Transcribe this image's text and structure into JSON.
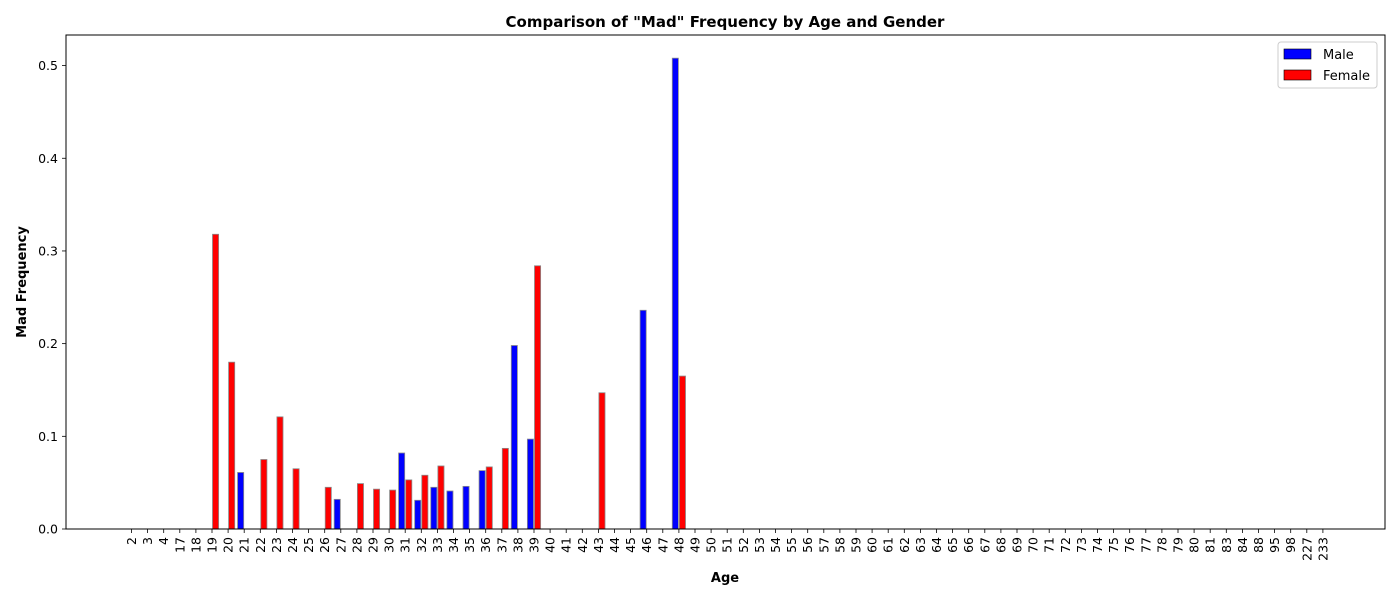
{
  "chart_data": {
    "type": "bar",
    "title": "Comparison of \"Mad\" Frequency by Age and Gender",
    "xlabel": "Age",
    "ylabel": "Mad Frequency",
    "ylim": [
      0,
      0.533
    ],
    "yticks": [
      0.0,
      0.1,
      0.2,
      0.3,
      0.4,
      0.5
    ],
    "ytick_labels": [
      "0.0",
      "0.1",
      "0.2",
      "0.3",
      "0.4",
      "0.5"
    ],
    "grid": false,
    "legend_position": "top-right",
    "categories": [
      "2",
      "3",
      "4",
      "17",
      "18",
      "19",
      "20",
      "21",
      "22",
      "23",
      "24",
      "25",
      "26",
      "27",
      "28",
      "29",
      "30",
      "31",
      "32",
      "33",
      "34",
      "35",
      "36",
      "37",
      "38",
      "39",
      "40",
      "41",
      "42",
      "43",
      "44",
      "45",
      "46",
      "47",
      "48",
      "49",
      "50",
      "51",
      "52",
      "53",
      "54",
      "55",
      "56",
      "57",
      "58",
      "59",
      "60",
      "61",
      "62",
      "63",
      "64",
      "65",
      "66",
      "67",
      "68",
      "69",
      "70",
      "71",
      "72",
      "73",
      "74",
      "75",
      "76",
      "77",
      "78",
      "79",
      "80",
      "81",
      "83",
      "84",
      "88",
      "95",
      "98",
      "227",
      "233"
    ],
    "series": [
      {
        "name": "Male",
        "color": "#0000ff",
        "values": [
          0,
          0,
          0,
          0,
          0,
          0,
          0,
          0.061,
          0,
          0,
          0,
          0,
          0,
          0.032,
          0,
          0,
          0,
          0.082,
          0.031,
          0.045,
          0.041,
          0.046,
          0.063,
          0,
          0.198,
          0.097,
          0,
          0,
          0,
          0,
          0,
          0,
          0.236,
          0,
          0.508,
          0,
          0,
          0,
          0,
          0,
          0,
          0,
          0,
          0,
          0,
          0,
          0,
          0,
          0,
          0,
          0,
          0,
          0,
          0,
          0,
          0,
          0,
          0,
          0,
          0,
          0,
          0,
          0,
          0,
          0,
          0,
          0,
          0,
          0,
          0,
          0,
          0,
          0,
          0,
          0
        ]
      },
      {
        "name": "Female",
        "color": "#ff0000",
        "values": [
          0,
          0,
          0,
          0,
          0,
          0.318,
          0.18,
          0,
          0.075,
          0.121,
          0.065,
          0,
          0.045,
          0,
          0.049,
          0.043,
          0.042,
          0.053,
          0.058,
          0.068,
          0,
          0,
          0.067,
          0.087,
          0,
          0.284,
          0,
          0,
          0,
          0.147,
          0,
          0,
          0,
          0,
          0.165,
          0,
          0,
          0,
          0,
          0,
          0,
          0,
          0,
          0,
          0,
          0,
          0,
          0,
          0,
          0,
          0,
          0,
          0,
          0,
          0,
          0,
          0,
          0,
          0,
          0,
          0,
          0,
          0,
          0,
          0,
          0,
          0,
          0,
          0,
          0,
          0,
          0,
          0,
          0,
          0
        ]
      }
    ]
  }
}
